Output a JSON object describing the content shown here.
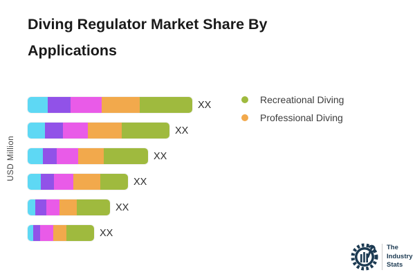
{
  "title": "Diving Regulator Market Share By Applications",
  "ylabel": "USD Million",
  "legend": [
    {
      "label": "Recreational Diving",
      "color": "#9fba3e"
    },
    {
      "label": "Professional Diving",
      "color": "#f2a94c"
    }
  ],
  "logo": {
    "lines": [
      "The",
      "Industry",
      "Stats"
    ],
    "color": "#1c3a52"
  },
  "chart_data": {
    "type": "bar",
    "orientation": "horizontal",
    "stacked": true,
    "title": "Diving Regulator Market Share By Applications",
    "ylabel": "USD Million",
    "grid": false,
    "legend_position": "right",
    "value_labels": "XX (placeholder values, actual numbers not shown)",
    "segment_colors": [
      "#5ed8f4",
      "#9152e8",
      "#e95be8",
      "#f2a94c",
      "#9fba3e"
    ],
    "legend_series": [
      "Recreational Diving",
      "Professional Diving"
    ],
    "rows": [
      {
        "label": "XX",
        "segments": [
          29,
          33,
          45,
          55,
          76
        ]
      },
      {
        "label": "XX",
        "segments": [
          25,
          26,
          36,
          49,
          69
        ]
      },
      {
        "label": "XX",
        "segments": [
          22,
          20,
          31,
          37,
          64
        ]
      },
      {
        "label": "XX",
        "segments": [
          19,
          19,
          28,
          39,
          40
        ]
      },
      {
        "label": "XX",
        "segments": [
          11,
          16,
          19,
          25,
          48
        ]
      },
      {
        "label": "XX",
        "segments": [
          8,
          10,
          19,
          19,
          40
        ]
      }
    ]
  }
}
